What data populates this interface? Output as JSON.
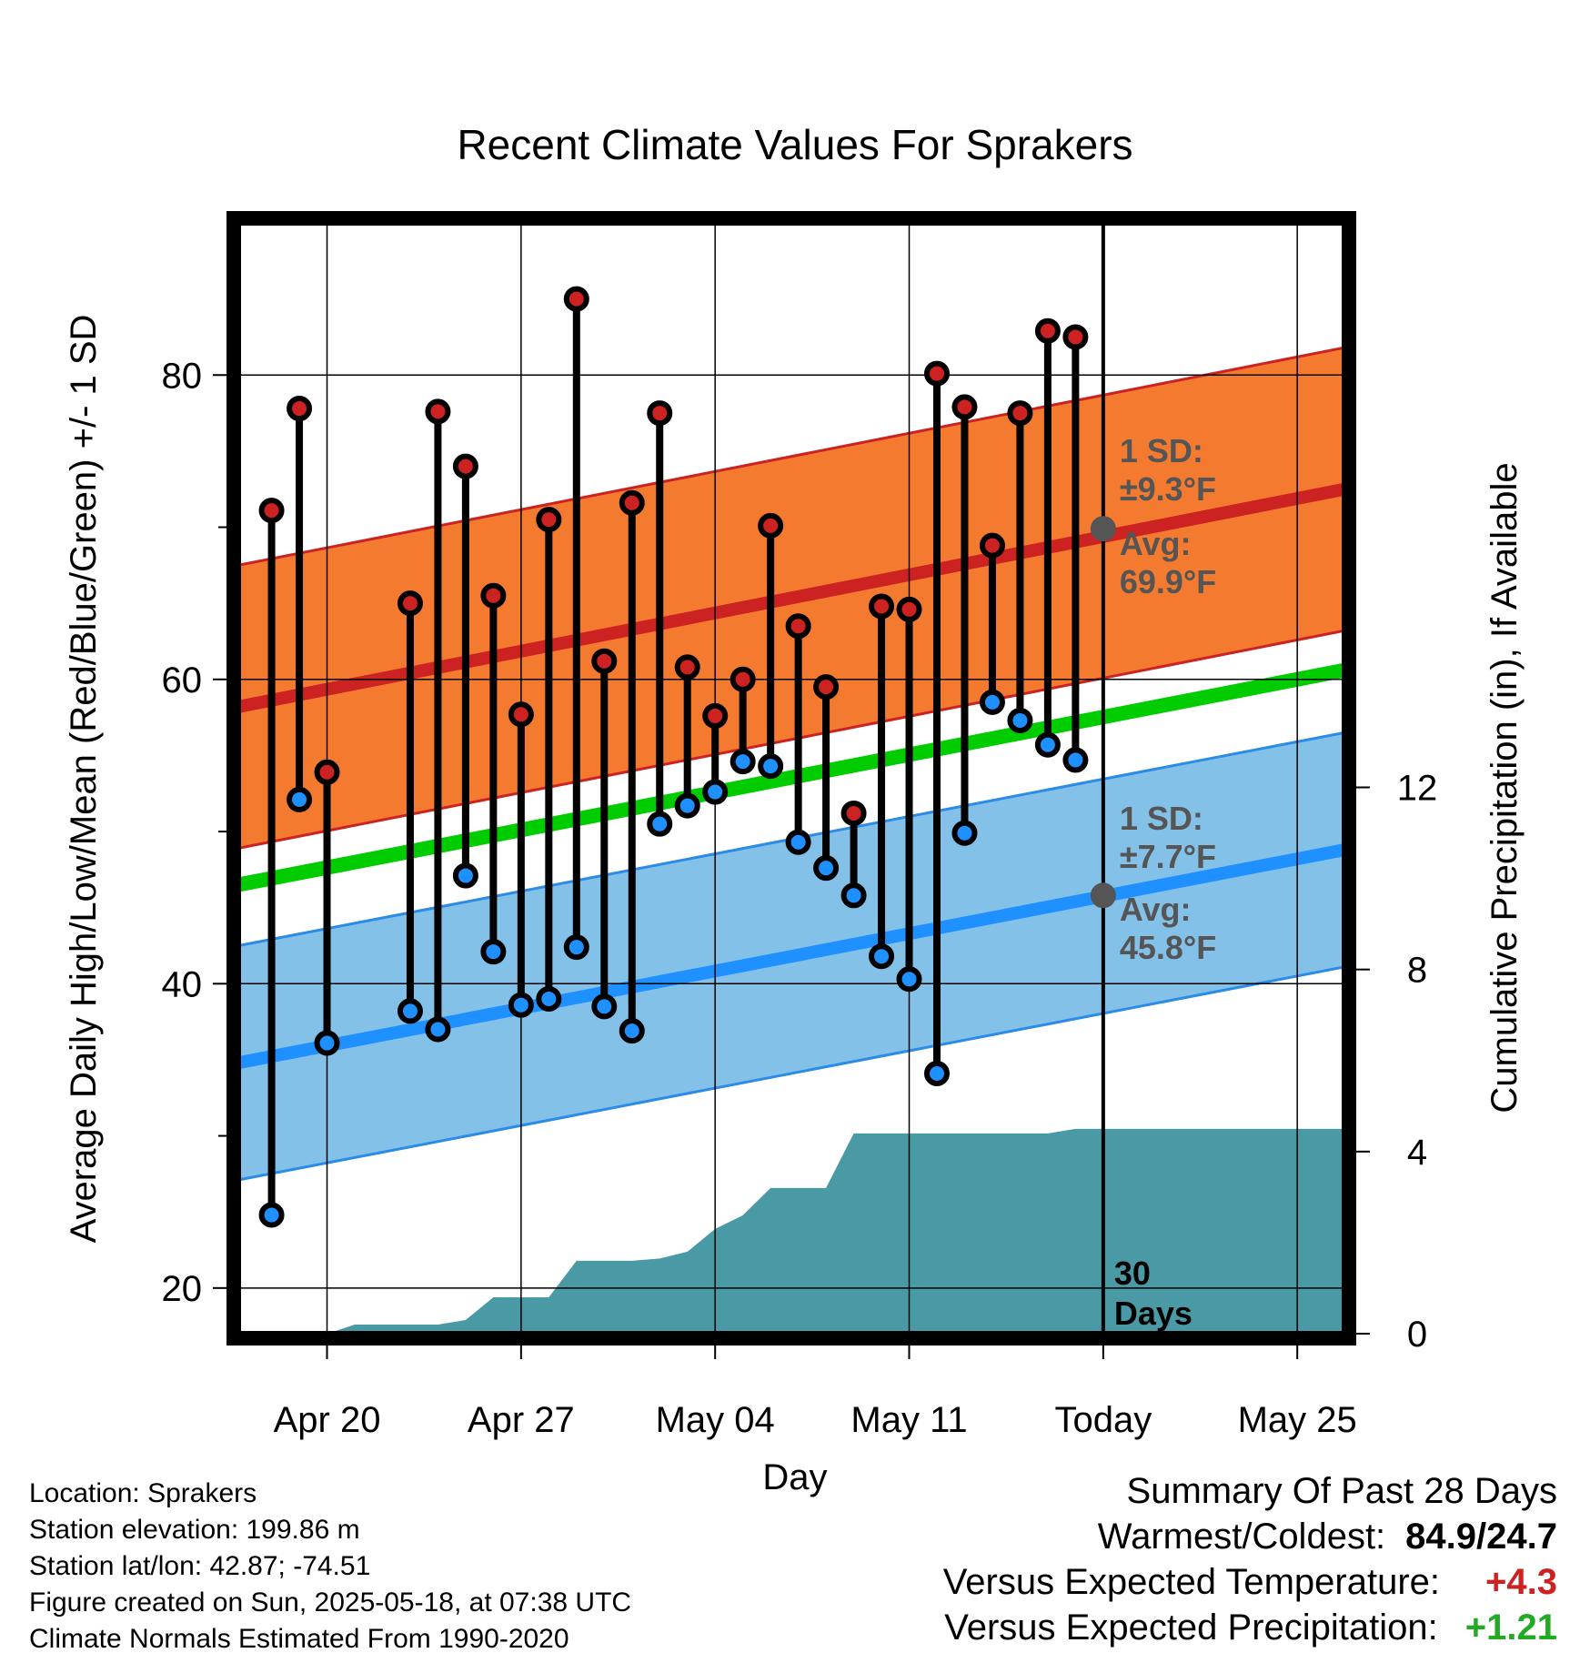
{
  "chart_data": {
    "type": "line",
    "title": "Recent Climate Values For Sprakers",
    "xlabel": "Day",
    "ylabel_left": "Average Daily High/Low/Mean (Red/Blue/Green) +/- 1 SD",
    "ylabel_right": "Cumulative Precipitation (in), If Available",
    "x_ticks": [
      {
        "label": "Apr 20",
        "day": 2
      },
      {
        "label": "Apr 27",
        "day": 9
      },
      {
        "label": "May 04",
        "day": 16
      },
      {
        "label": "May 11",
        "day": 23
      },
      {
        "label": "Today",
        "day": 30
      },
      {
        "label": "May 25",
        "day": 37
      }
    ],
    "y_left_ticks": [
      20,
      40,
      60,
      80
    ],
    "y_left_minor": [
      30,
      50,
      70
    ],
    "ylim_left": [
      17,
      90
    ],
    "y_right_ticks": [
      0,
      4,
      8,
      12
    ],
    "ylim_right": [
      0,
      24.4
    ],
    "xlim": [
      -1.2,
      38.7
    ],
    "grid": true,
    "today_day": 30,
    "today_label": [
      "30",
      "Days"
    ],
    "normals": {
      "high_mean": {
        "start": 58.2,
        "end": 72.5,
        "sd": 9.3
      },
      "low_mean": {
        "start": 34.8,
        "end": 48.8,
        "sd": 7.7
      },
      "avg_mean": {
        "start": 46.5,
        "end": 60.6
      }
    },
    "annotations": {
      "high": {
        "lines": [
          "1 SD:",
          "±9.3°F",
          "Avg:",
          "69.9°F"
        ],
        "value": 69.9
      },
      "low": {
        "lines": [
          "1 SD:",
          "±7.7°F",
          "Avg:",
          "45.8°F"
        ],
        "value": 45.8
      }
    },
    "daily": [
      {
        "day": 0,
        "high": 71.1,
        "low": 24.8
      },
      {
        "day": 1,
        "high": 77.8,
        "low": 52.1
      },
      {
        "day": 2,
        "high": 53.9,
        "low": 36.1
      },
      {
        "day": 5,
        "high": 65.0,
        "low": 38.2
      },
      {
        "day": 6,
        "high": 77.6,
        "low": 37.0
      },
      {
        "day": 7,
        "high": 74.0,
        "low": 47.1
      },
      {
        "day": 8,
        "high": 65.5,
        "low": 42.1
      },
      {
        "day": 9,
        "high": 57.7,
        "low": 38.6
      },
      {
        "day": 10,
        "high": 70.5,
        "low": 39.0
      },
      {
        "day": 11,
        "high": 85.0,
        "low": 42.4
      },
      {
        "day": 12,
        "high": 61.2,
        "low": 38.5
      },
      {
        "day": 13,
        "high": 71.6,
        "low": 36.9
      },
      {
        "day": 14,
        "high": 77.5,
        "low": 50.5
      },
      {
        "day": 15,
        "high": 60.8,
        "low": 51.7
      },
      {
        "day": 16,
        "high": 57.6,
        "low": 52.6
      },
      {
        "day": 17,
        "high": 60.0,
        "low": 54.6
      },
      {
        "day": 18,
        "high": 70.1,
        "low": 54.3
      },
      {
        "day": 19,
        "high": 63.5,
        "low": 49.3
      },
      {
        "day": 20,
        "high": 59.5,
        "low": 47.6
      },
      {
        "day": 21,
        "high": 51.2,
        "low": 45.8
      },
      {
        "day": 22,
        "high": 64.8,
        "low": 41.8
      },
      {
        "day": 23,
        "high": 64.6,
        "low": 40.3
      },
      {
        "day": 24,
        "high": 80.1,
        "low": 34.1
      },
      {
        "day": 25,
        "high": 77.9,
        "low": 49.9
      },
      {
        "day": 26,
        "high": 68.8,
        "low": 58.5
      },
      {
        "day": 27,
        "high": 77.5,
        "low": 57.3
      },
      {
        "day": 28,
        "high": 82.9,
        "low": 55.7
      },
      {
        "day": 29,
        "high": 82.5,
        "low": 54.7
      }
    ],
    "precip_cumulative": [
      {
        "day": -1.0,
        "value": 0.0
      },
      {
        "day": 2.0,
        "value": 0.0
      },
      {
        "day": 3.0,
        "value": 0.2
      },
      {
        "day": 6.0,
        "value": 0.2
      },
      {
        "day": 7.0,
        "value": 0.3
      },
      {
        "day": 8.0,
        "value": 0.8
      },
      {
        "day": 9.0,
        "value": 0.8
      },
      {
        "day": 10.0,
        "value": 0.8
      },
      {
        "day": 11.0,
        "value": 1.6
      },
      {
        "day": 13.0,
        "value": 1.6
      },
      {
        "day": 14.0,
        "value": 1.65
      },
      {
        "day": 15.0,
        "value": 1.8
      },
      {
        "day": 16.0,
        "value": 2.3
      },
      {
        "day": 17.0,
        "value": 2.6
      },
      {
        "day": 18.0,
        "value": 3.2
      },
      {
        "day": 20.0,
        "value": 3.2
      },
      {
        "day": 21.0,
        "value": 4.4
      },
      {
        "day": 24.0,
        "value": 4.4
      },
      {
        "day": 27.0,
        "value": 4.4
      },
      {
        "day": 28.0,
        "value": 4.4
      },
      {
        "day": 29.0,
        "value": 4.5
      },
      {
        "day": 38.7,
        "value": 4.5
      }
    ],
    "colors": {
      "high_band": "#f47a30",
      "high_edge": "#cc2222",
      "high_mean": "#cc2222",
      "low_band": "#84c1e8",
      "low_edge": "#2b8be6",
      "low_mean": "#1e90ff",
      "avg_mean": "#00cc00",
      "precip": "#4a9aa6",
      "high_dot": "#cc2222",
      "low_dot": "#1e90ff",
      "marker": "#555555"
    }
  },
  "info": {
    "location": "Location: Sprakers",
    "elevation": "Station elevation: 199.86 m",
    "latlon": "Station lat/lon: 42.87; -74.51",
    "created": "Figure created on Sun, 2025-05-18, at 07:38 UTC",
    "normals": "Climate Normals Estimated From 1990-2020"
  },
  "summary": {
    "title": "Summary Of Past 28 Days",
    "warm_cold_label": "Warmest/Coldest:",
    "warm_cold_value": "84.9/24.7",
    "temp_label": "Versus Expected Temperature:",
    "temp_value": "+4.3",
    "temp_color": "#cc2222",
    "precip_label": "Versus Expected Precipitation:",
    "precip_value": "+1.21",
    "precip_color": "#22aa22"
  }
}
